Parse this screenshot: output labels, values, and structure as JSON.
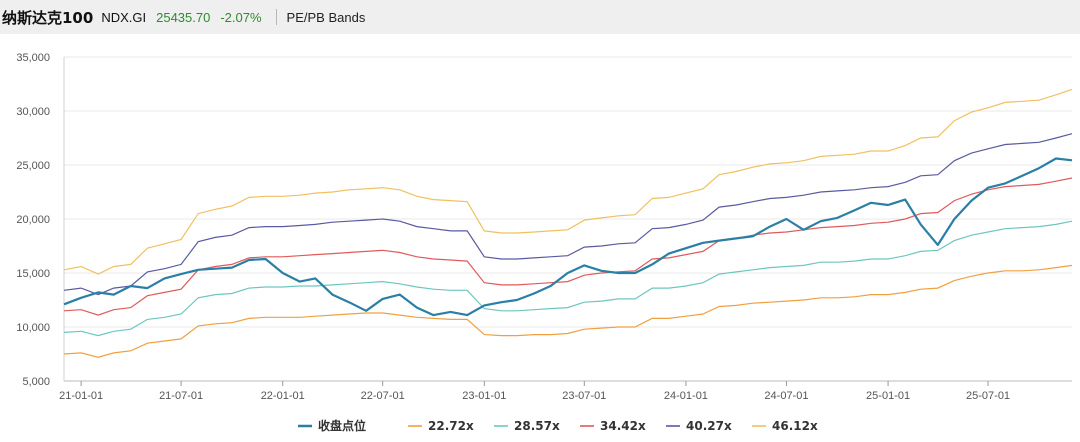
{
  "header": {
    "title": "纳斯达克100",
    "code": "NDX.GI",
    "price": "25435.70",
    "change": "-2.07%",
    "band_label": "PE/PB Bands"
  },
  "chart_data": {
    "type": "line",
    "xlim": [
      "2020-12-01",
      "2025-11-30"
    ],
    "ylim": [
      5000,
      35000
    ],
    "y_ticks": [
      5000,
      10000,
      15000,
      20000,
      25000,
      30000,
      35000
    ],
    "y_tick_labels": [
      "5,000",
      "10,000",
      "15,000",
      "20,000",
      "25,000",
      "30,000",
      "35,000"
    ],
    "x_ticks": [
      "2021-01-01",
      "2021-07-01",
      "2022-01-01",
      "2022-07-01",
      "2023-01-01",
      "2023-07-01",
      "2024-01-01",
      "2024-07-01",
      "2025-01-01",
      "2025-07-01"
    ],
    "x_tick_labels": [
      "21-01-01",
      "21-07-01",
      "22-01-01",
      "22-07-01",
      "23-01-01",
      "23-07-01",
      "24-01-01",
      "24-07-01",
      "25-01-01",
      "25-07-01"
    ],
    "grid": "horizontal",
    "legend_position": "bottom",
    "dates": [
      "2020-12-01",
      "2021-01-01",
      "2021-02-01",
      "2021-03-01",
      "2021-04-01",
      "2021-05-01",
      "2021-06-01",
      "2021-07-01",
      "2021-08-01",
      "2021-09-01",
      "2021-10-01",
      "2021-11-01",
      "2021-12-01",
      "2022-01-01",
      "2022-02-01",
      "2022-03-01",
      "2022-04-01",
      "2022-05-01",
      "2022-06-01",
      "2022-07-01",
      "2022-08-01",
      "2022-09-01",
      "2022-10-01",
      "2022-11-01",
      "2022-12-01",
      "2023-01-01",
      "2023-02-01",
      "2023-03-01",
      "2023-04-01",
      "2023-05-01",
      "2023-06-01",
      "2023-07-01",
      "2023-08-01",
      "2023-09-01",
      "2023-10-01",
      "2023-11-01",
      "2023-12-01",
      "2024-01-01",
      "2024-02-01",
      "2024-03-01",
      "2024-04-01",
      "2024-05-01",
      "2024-06-01",
      "2024-07-01",
      "2024-08-01",
      "2024-09-01",
      "2024-10-01",
      "2024-11-01",
      "2024-12-01",
      "2025-01-01",
      "2025-02-01",
      "2025-03-01",
      "2025-04-01",
      "2025-05-01",
      "2025-06-01",
      "2025-07-01",
      "2025-08-01",
      "2025-09-01",
      "2025-10-01",
      "2025-11-01",
      "2025-11-30"
    ],
    "close_series": {
      "name": "收盘点位",
      "color": "#2a7fa6",
      "values": [
        12100,
        12700,
        13200,
        13000,
        13800,
        13600,
        14500,
        14900,
        15300,
        15400,
        15500,
        16200,
        16300,
        15000,
        14200,
        14500,
        13000,
        12300,
        11500,
        12600,
        13000,
        11800,
        11100,
        11400,
        11100,
        12000,
        12300,
        12500,
        13100,
        13800,
        15000,
        15700,
        15200,
        15000,
        15000,
        15800,
        16800,
        17300,
        17800,
        18000,
        18200,
        18400,
        19300,
        20000,
        19000,
        19800,
        20100,
        20800,
        21500,
        21300,
        21800,
        19500,
        17600,
        20000,
        21700,
        22900,
        23300,
        24000,
        24700,
        25600,
        25435
      ]
    },
    "series": [
      {
        "name": "22.72x",
        "color": "#f0a040",
        "values": [
          7500,
          7600,
          7200,
          7600,
          7800,
          8500,
          8700,
          8900,
          10100,
          10300,
          10400,
          10800,
          10900,
          10900,
          10900,
          11000,
          11100,
          11200,
          11300,
          11300,
          11100,
          10900,
          10800,
          10700,
          10700,
          9300,
          9200,
          9200,
          9300,
          9300,
          9400,
          9800,
          9900,
          10000,
          10000,
          10800,
          10800,
          11000,
          11200,
          11900,
          12000,
          12200,
          12300,
          12400,
          12500,
          12700,
          12700,
          12800,
          13000,
          13000,
          13200,
          13500,
          13600,
          14300,
          14700,
          15000,
          15200,
          15200,
          15300,
          15500,
          15700
        ]
      },
      {
        "name": "28.57x",
        "color": "#6ec6c0",
        "values": [
          9500,
          9600,
          9200,
          9600,
          9800,
          10700,
          10900,
          11200,
          12700,
          13000,
          13100,
          13600,
          13700,
          13700,
          13800,
          13800,
          13900,
          14000,
          14100,
          14200,
          14000,
          13700,
          13500,
          13400,
          13400,
          11700,
          11500,
          11500,
          11600,
          11700,
          11800,
          12300,
          12400,
          12600,
          12600,
          13600,
          13600,
          13800,
          14100,
          14900,
          15100,
          15300,
          15500,
          15600,
          15700,
          16000,
          16000,
          16100,
          16300,
          16300,
          16600,
          17000,
          17100,
          18000,
          18500,
          18800,
          19100,
          19200,
          19300,
          19500,
          19800
        ]
      },
      {
        "name": "34.42x",
        "color": "#e05a5a",
        "values": [
          11500,
          11600,
          11100,
          11600,
          11800,
          12900,
          13200,
          13500,
          15300,
          15600,
          15800,
          16400,
          16500,
          16500,
          16600,
          16700,
          16800,
          16900,
          17000,
          17100,
          16900,
          16500,
          16300,
          16200,
          16100,
          14100,
          13900,
          13900,
          14000,
          14100,
          14200,
          14800,
          15000,
          15100,
          15200,
          16300,
          16400,
          16700,
          17000,
          18000,
          18200,
          18500,
          18700,
          18800,
          19000,
          19200,
          19300,
          19400,
          19600,
          19700,
          20000,
          20500,
          20600,
          21700,
          22300,
          22700,
          23000,
          23100,
          23200,
          23500,
          23800
        ]
      },
      {
        "name": "40.27x",
        "color": "#5a5aa0",
        "values": [
          13400,
          13600,
          13000,
          13600,
          13800,
          15100,
          15400,
          15800,
          17900,
          18300,
          18500,
          19200,
          19300,
          19300,
          19400,
          19500,
          19700,
          19800,
          19900,
          20000,
          19800,
          19300,
          19100,
          18900,
          18900,
          16500,
          16300,
          16300,
          16400,
          16500,
          16600,
          17400,
          17500,
          17700,
          17800,
          19100,
          19200,
          19500,
          19900,
          21100,
          21300,
          21600,
          21900,
          22000,
          22200,
          22500,
          22600,
          22700,
          22900,
          23000,
          23400,
          24000,
          24100,
          25400,
          26100,
          26500,
          26900,
          27000,
          27100,
          27500,
          27900
        ]
      },
      {
        "name": "46.12x",
        "color": "#f0c060",
        "values": [
          15300,
          15600,
          14900,
          15600,
          15800,
          17300,
          17700,
          18100,
          20500,
          20900,
          21200,
          22000,
          22100,
          22100,
          22200,
          22400,
          22500,
          22700,
          22800,
          22900,
          22700,
          22100,
          21800,
          21700,
          21600,
          18900,
          18700,
          18700,
          18800,
          18900,
          19000,
          19900,
          20100,
          20300,
          20400,
          21900,
          22000,
          22400,
          22800,
          24100,
          24400,
          24800,
          25100,
          25200,
          25400,
          25800,
          25900,
          26000,
          26300,
          26300,
          26800,
          27500,
          27600,
          29100,
          29900,
          30300,
          30800,
          30900,
          31000,
          31500,
          32000
        ]
      }
    ]
  }
}
